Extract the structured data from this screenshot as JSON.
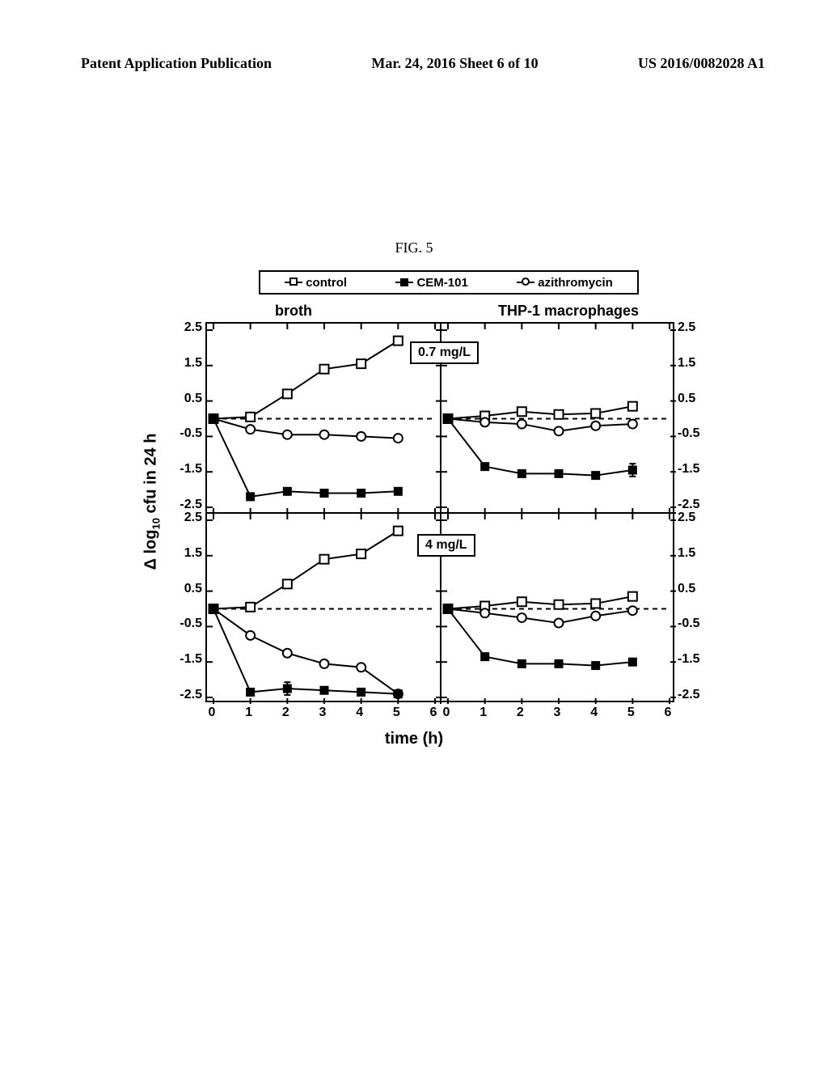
{
  "header": {
    "left": "Patent Application Publication",
    "center": "Mar. 24, 2016  Sheet 6 of 10",
    "right": "US 2016/0082028 A1"
  },
  "figure_label": "FIG. 5",
  "legend": {
    "items": [
      {
        "marker": "square-open",
        "label": "control"
      },
      {
        "marker": "square-filled",
        "label": "CEM-101"
      },
      {
        "marker": "circle-open",
        "label": "azithromycin"
      }
    ]
  },
  "columns": {
    "left": "broth",
    "right": "THP-1 macrophages"
  },
  "ylabel_prefix": "Δ log",
  "ylabel_sub": "10",
  "ylabel_suffix": " cfu in 24 h",
  "xlabel": "time (h)",
  "concentrations": {
    "top": "0.7 mg/L",
    "bottom": "4 mg/L"
  },
  "axes": {
    "xlim": [
      0,
      6
    ],
    "xticks": [
      0,
      1,
      2,
      3,
      4,
      5,
      6
    ],
    "ylim": [
      -2.5,
      2.5
    ],
    "yticks": [
      -2.5,
      -1.5,
      -0.5,
      0.5,
      1.5,
      2.5
    ],
    "zero_line_y": 0,
    "tick_fontsize": 16,
    "grid_color": "#000000",
    "line_width": 2
  },
  "panels": {
    "tl": {
      "series": [
        {
          "marker": "square-open",
          "pts": [
            [
              0,
              0
            ],
            [
              1,
              0.05
            ],
            [
              2,
              0.7
            ],
            [
              3,
              1.4
            ],
            [
              4,
              1.55
            ],
            [
              5,
              2.2
            ]
          ]
        },
        {
          "marker": "circle-open",
          "pts": [
            [
              0,
              0
            ],
            [
              1,
              -0.3
            ],
            [
              2,
              -0.45
            ],
            [
              3,
              -0.45
            ],
            [
              4,
              -0.5
            ],
            [
              5,
              -0.55
            ]
          ]
        },
        {
          "marker": "square-filled",
          "pts": [
            [
              0,
              0
            ],
            [
              1,
              -2.2
            ],
            [
              2,
              -2.05
            ],
            [
              3,
              -2.1
            ],
            [
              4,
              -2.1
            ],
            [
              5,
              -2.05
            ]
          ]
        }
      ]
    },
    "tr": {
      "series": [
        {
          "marker": "square-open",
          "pts": [
            [
              0,
              0
            ],
            [
              1,
              0.08
            ],
            [
              2,
              0.2
            ],
            [
              3,
              0.12
            ],
            [
              4,
              0.15
            ],
            [
              5,
              0.35
            ]
          ]
        },
        {
          "marker": "circle-open",
          "pts": [
            [
              0,
              0
            ],
            [
              1,
              -0.1
            ],
            [
              2,
              -0.15
            ],
            [
              3,
              -0.35
            ],
            [
              4,
              -0.2
            ],
            [
              5,
              -0.15
            ]
          ]
        },
        {
          "marker": "square-filled",
          "pts": [
            [
              0,
              0
            ],
            [
              1,
              -1.35
            ],
            [
              2,
              -1.55
            ],
            [
              3,
              -1.55
            ],
            [
              4,
              -1.6
            ],
            [
              5,
              -1.45
            ]
          ],
          "err": [
            0,
            0,
            0,
            0,
            0,
            0.18
          ]
        }
      ]
    },
    "bl": {
      "series": [
        {
          "marker": "square-open",
          "pts": [
            [
              0,
              0
            ],
            [
              1,
              0.05
            ],
            [
              2,
              0.7
            ],
            [
              3,
              1.4
            ],
            [
              4,
              1.55
            ],
            [
              5,
              2.2
            ]
          ]
        },
        {
          "marker": "circle-open",
          "pts": [
            [
              0,
              0
            ],
            [
              1,
              -0.75
            ],
            [
              2,
              -1.25
            ],
            [
              3,
              -1.55
            ],
            [
              4,
              -1.65
            ],
            [
              5,
              -2.4
            ]
          ]
        },
        {
          "marker": "square-filled",
          "pts": [
            [
              0,
              0
            ],
            [
              1,
              -2.35
            ],
            [
              2,
              -2.25
            ],
            [
              3,
              -2.3
            ],
            [
              4,
              -2.35
            ],
            [
              5,
              -2.4
            ]
          ],
          "err": [
            0,
            0,
            0.18,
            0,
            0,
            0
          ]
        }
      ]
    },
    "br": {
      "series": [
        {
          "marker": "square-open",
          "pts": [
            [
              0,
              0
            ],
            [
              1,
              0.08
            ],
            [
              2,
              0.2
            ],
            [
              3,
              0.12
            ],
            [
              4,
              0.15
            ],
            [
              5,
              0.35
            ]
          ]
        },
        {
          "marker": "circle-open",
          "pts": [
            [
              0,
              0
            ],
            [
              1,
              -0.12
            ],
            [
              2,
              -0.25
            ],
            [
              3,
              -0.4
            ],
            [
              4,
              -0.2
            ],
            [
              5,
              -0.05
            ]
          ]
        },
        {
          "marker": "square-filled",
          "pts": [
            [
              0,
              0
            ],
            [
              1,
              -1.35
            ],
            [
              2,
              -1.55
            ],
            [
              3,
              -1.55
            ],
            [
              4,
              -1.6
            ],
            [
              5,
              -1.5
            ]
          ]
        }
      ]
    }
  },
  "colors": {
    "line": "#000000",
    "background": "#ffffff",
    "marker_fill_open": "#ffffff"
  }
}
